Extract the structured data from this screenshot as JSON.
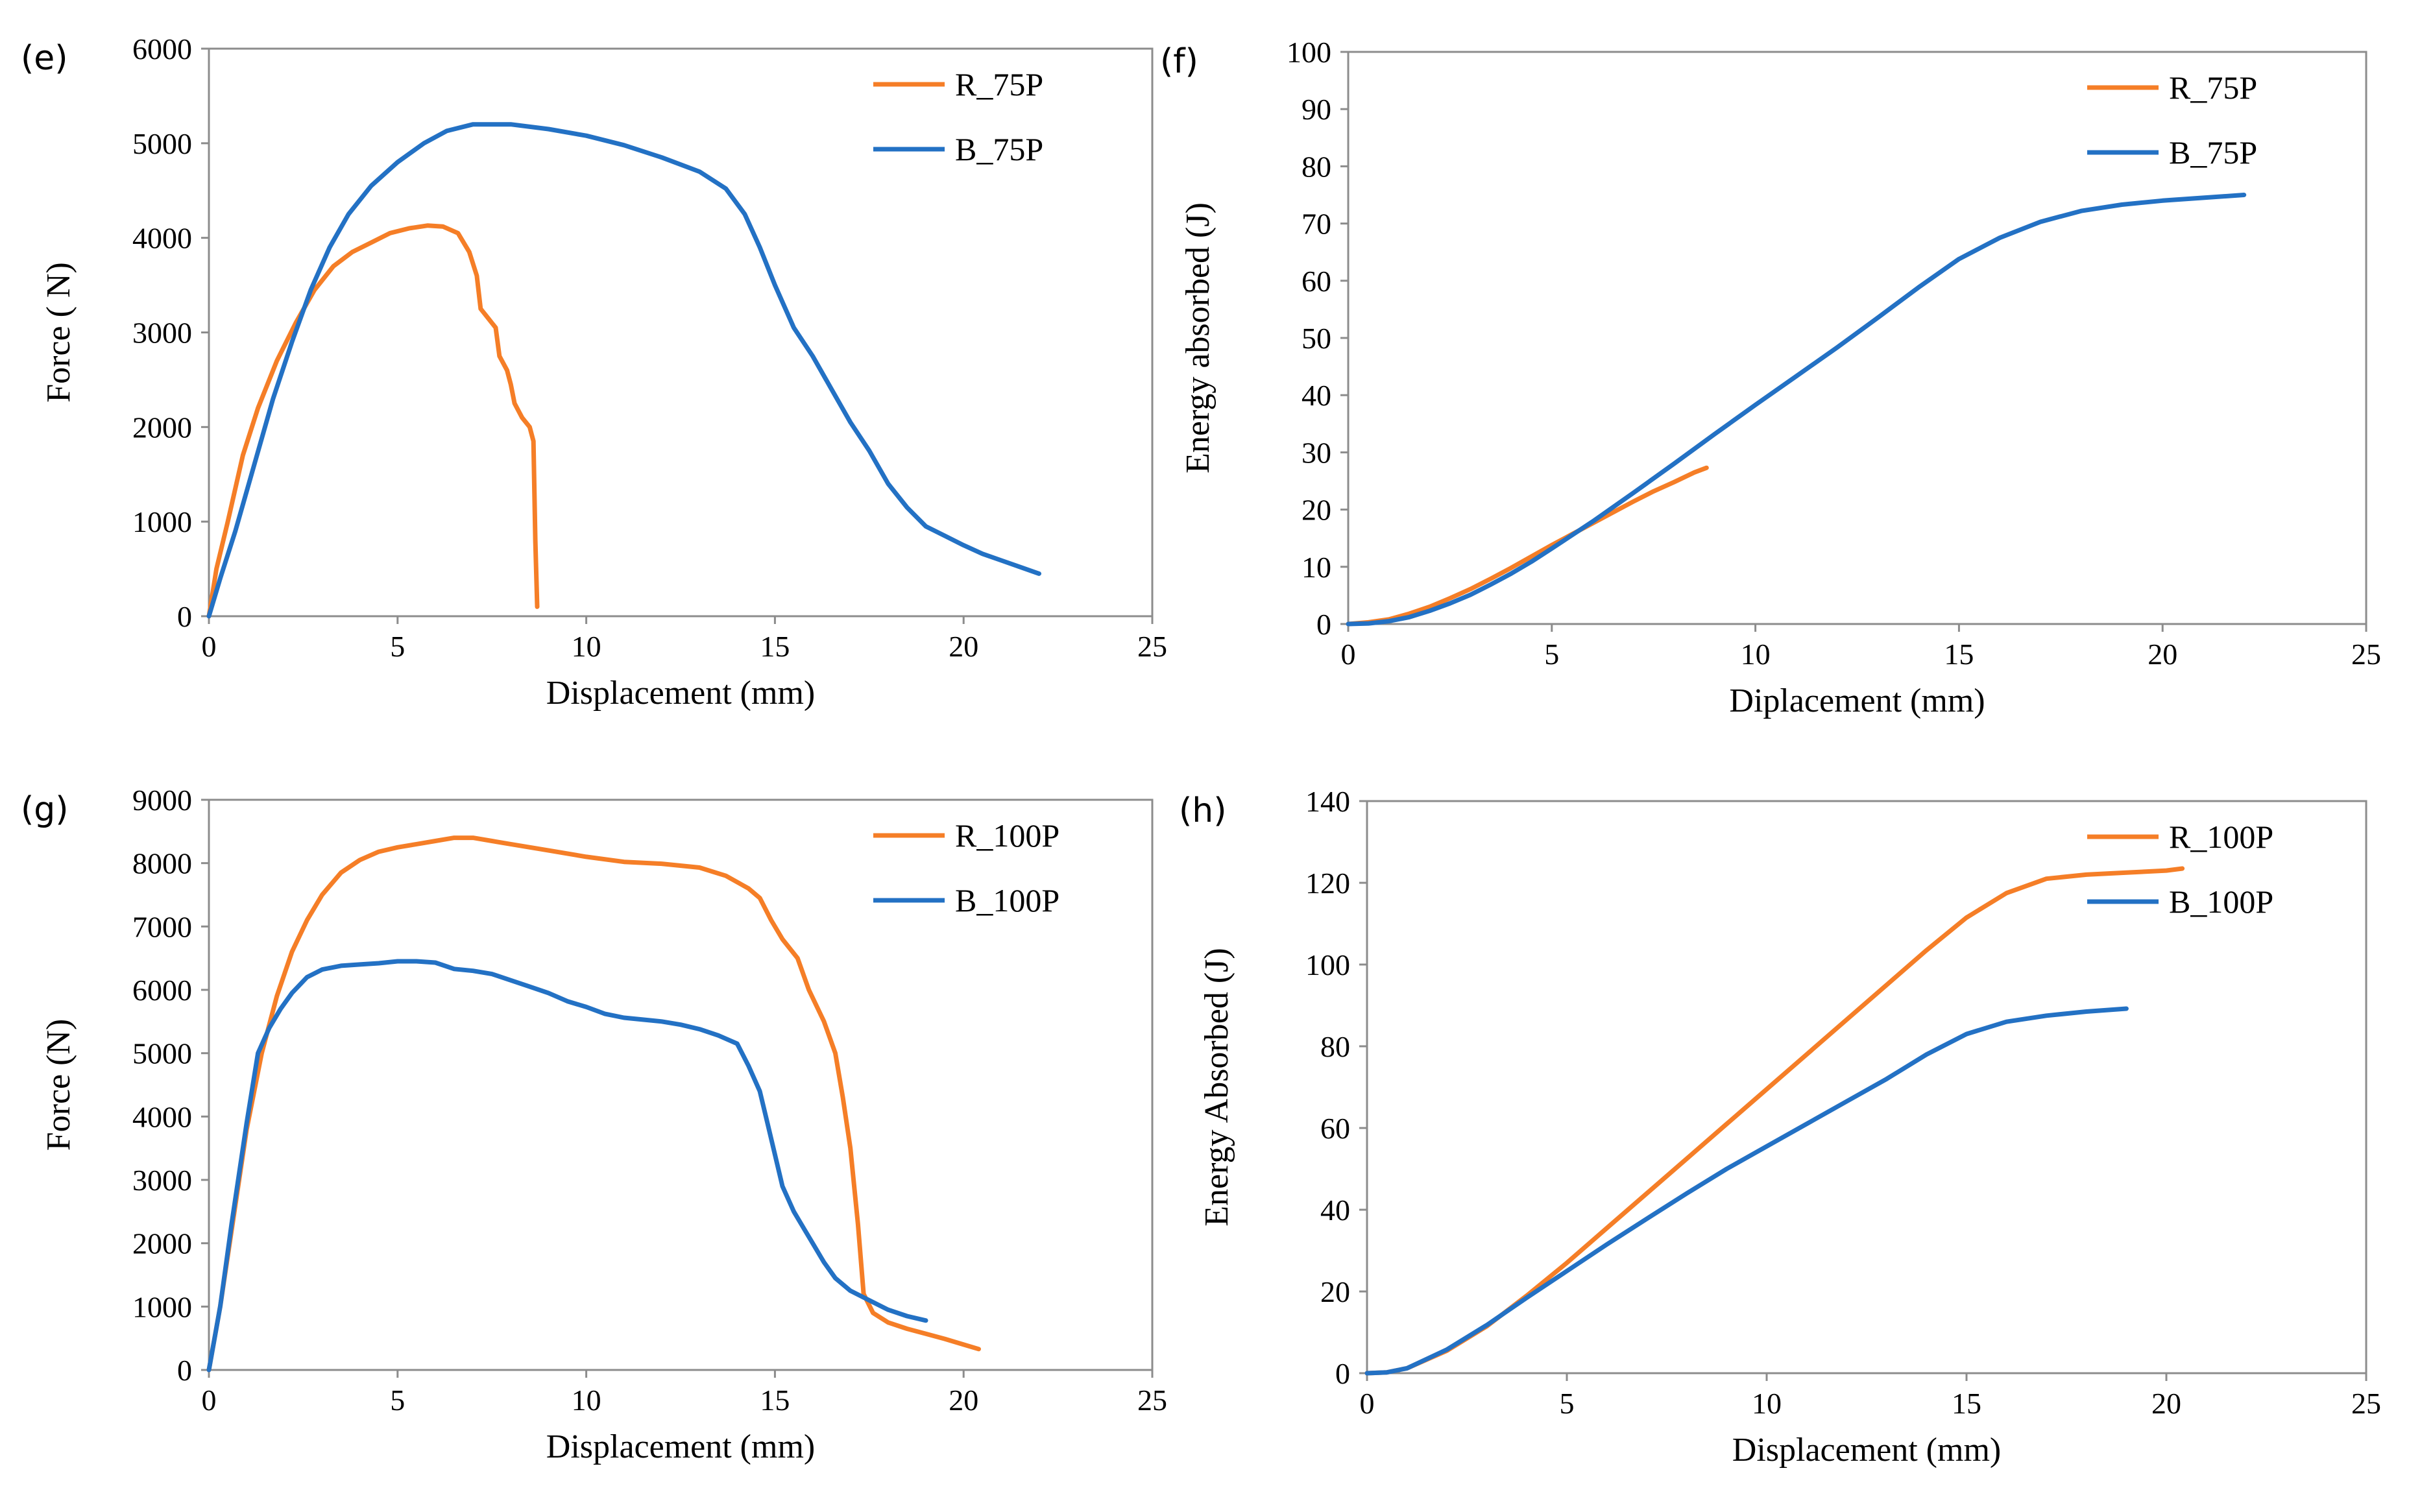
{
  "colors": {
    "orange": "#F57E27",
    "blue": "#2371C4",
    "axis": "#8C8C8C"
  },
  "chart_data": [
    {
      "id": "e",
      "panel_label": "(e)",
      "type": "line",
      "xlabel": "Displacement (mm)",
      "ylabel": "Force ( N)",
      "xlim": [
        0,
        25
      ],
      "ylim": [
        0,
        6000
      ],
      "xticks": [
        "0",
        "5",
        "10",
        "15",
        "20",
        "25"
      ],
      "yticks": [
        "0",
        "1000",
        "2000",
        "3000",
        "4000",
        "5000",
        "6000"
      ],
      "legend_position": "top-right",
      "series": [
        {
          "name": "R_75P",
          "color": "#F57E27",
          "points": [
            [
              0,
              0
            ],
            [
              0.2,
              500
            ],
            [
              0.5,
              1000
            ],
            [
              0.9,
              1700
            ],
            [
              1.3,
              2200
            ],
            [
              1.8,
              2700
            ],
            [
              2.3,
              3100
            ],
            [
              2.8,
              3450
            ],
            [
              3.3,
              3700
            ],
            [
              3.8,
              3850
            ],
            [
              4.3,
              3950
            ],
            [
              4.8,
              4050
            ],
            [
              5.3,
              4100
            ],
            [
              5.8,
              4130
            ],
            [
              6.2,
              4120
            ],
            [
              6.6,
              4050
            ],
            [
              6.9,
              3850
            ],
            [
              7.1,
              3600
            ],
            [
              7.2,
              3250
            ],
            [
              7.4,
              3150
            ],
            [
              7.6,
              3050
            ],
            [
              7.7,
              2750
            ],
            [
              7.9,
              2600
            ],
            [
              8.0,
              2450
            ],
            [
              8.1,
              2250
            ],
            [
              8.3,
              2100
            ],
            [
              8.5,
              2000
            ],
            [
              8.6,
              1850
            ],
            [
              8.65,
              800
            ],
            [
              8.7,
              100
            ]
          ]
        },
        {
          "name": "B_75P",
          "color": "#2371C4",
          "points": [
            [
              0,
              0
            ],
            [
              0.3,
              400
            ],
            [
              0.7,
              900
            ],
            [
              1.2,
              1600
            ],
            [
              1.7,
              2300
            ],
            [
              2.2,
              2900
            ],
            [
              2.7,
              3450
            ],
            [
              3.2,
              3900
            ],
            [
              3.7,
              4250
            ],
            [
              4.3,
              4550
            ],
            [
              5,
              4800
            ],
            [
              5.7,
              5000
            ],
            [
              6.3,
              5130
            ],
            [
              7,
              5200
            ],
            [
              8,
              5200
            ],
            [
              9,
              5150
            ],
            [
              10,
              5080
            ],
            [
              11,
              4980
            ],
            [
              12,
              4850
            ],
            [
              13,
              4700
            ],
            [
              13.7,
              4520
            ],
            [
              14.2,
              4250
            ],
            [
              14.6,
              3900
            ],
            [
              15,
              3500
            ],
            [
              15.5,
              3050
            ],
            [
              16,
              2750
            ],
            [
              16.5,
              2400
            ],
            [
              17,
              2050
            ],
            [
              17.5,
              1750
            ],
            [
              18,
              1400
            ],
            [
              18.5,
              1150
            ],
            [
              19,
              950
            ],
            [
              19.5,
              850
            ],
            [
              20,
              750
            ],
            [
              20.5,
              660
            ],
            [
              21,
              590
            ],
            [
              21.5,
              520
            ],
            [
              22,
              450
            ]
          ]
        }
      ]
    },
    {
      "id": "f",
      "panel_label": "(f)",
      "type": "line",
      "xlabel": "Diplacement (mm)",
      "ylabel": "Energy absorbed (J)",
      "xlim": [
        0,
        25
      ],
      "ylim": [
        0,
        100
      ],
      "xticks": [
        "0",
        "5",
        "10",
        "15",
        "20",
        "25"
      ],
      "yticks": [
        "0",
        "10",
        "20",
        "30",
        "40",
        "50",
        "60",
        "70",
        "80",
        "90",
        "100"
      ],
      "legend_position": "top-right",
      "series": [
        {
          "name": "R_75P",
          "color": "#F57E27",
          "points": [
            [
              0,
              0
            ],
            [
              0.5,
              0.3
            ],
            [
              1,
              0.8
            ],
            [
              1.5,
              1.8
            ],
            [
              2,
              3
            ],
            [
              2.5,
              4.5
            ],
            [
              3,
              6.1
            ],
            [
              3.5,
              7.9
            ],
            [
              4,
              9.8
            ],
            [
              4.5,
              11.8
            ],
            [
              5,
              13.8
            ],
            [
              5.5,
              15.7
            ],
            [
              6,
              17.6
            ],
            [
              6.5,
              19.5
            ],
            [
              7,
              21.4
            ],
            [
              7.5,
              23.2
            ],
            [
              8,
              24.8
            ],
            [
              8.5,
              26.5
            ],
            [
              8.8,
              27.3
            ]
          ]
        },
        {
          "name": "B_75P",
          "color": "#2371C4",
          "points": [
            [
              0,
              0
            ],
            [
              0.5,
              0.1
            ],
            [
              1,
              0.5
            ],
            [
              1.5,
              1.2
            ],
            [
              2,
              2.3
            ],
            [
              2.5,
              3.6
            ],
            [
              3,
              5.1
            ],
            [
              3.5,
              6.9
            ],
            [
              4,
              8.8
            ],
            [
              4.5,
              10.9
            ],
            [
              5,
              13.2
            ],
            [
              6,
              17.9
            ],
            [
              7,
              22.9
            ],
            [
              8,
              28
            ],
            [
              9,
              33.2
            ],
            [
              10,
              38.3
            ],
            [
              11,
              43.3
            ],
            [
              12,
              48.3
            ],
            [
              13,
              53.5
            ],
            [
              14,
              58.8
            ],
            [
              15,
              63.8
            ],
            [
              16,
              67.5
            ],
            [
              17,
              70.3
            ],
            [
              18,
              72.2
            ],
            [
              19,
              73.3
            ],
            [
              20,
              74
            ],
            [
              21,
              74.5
            ],
            [
              22,
              75
            ]
          ]
        }
      ]
    },
    {
      "id": "g",
      "panel_label": "(g)",
      "type": "line",
      "xlabel": "Displacement (mm)",
      "ylabel": "Force (N)",
      "xlim": [
        0,
        25
      ],
      "ylim": [
        0,
        9000
      ],
      "xticks": [
        "0",
        "5",
        "10",
        "15",
        "20",
        "25"
      ],
      "yticks": [
        "0",
        "1000",
        "2000",
        "3000",
        "4000",
        "5000",
        "6000",
        "7000",
        "8000",
        "9000"
      ],
      "legend_position": "top-right",
      "series": [
        {
          "name": "R_100P",
          "color": "#F57E27",
          "points": [
            [
              0,
              0
            ],
            [
              0.3,
              1000
            ],
            [
              0.6,
              2200
            ],
            [
              1,
              3800
            ],
            [
              1.4,
              5000
            ],
            [
              1.8,
              5900
            ],
            [
              2.2,
              6600
            ],
            [
              2.6,
              7100
            ],
            [
              3,
              7500
            ],
            [
              3.5,
              7850
            ],
            [
              4,
              8050
            ],
            [
              4.5,
              8180
            ],
            [
              5,
              8250
            ],
            [
              5.5,
              8300
            ],
            [
              6,
              8350
            ],
            [
              6.5,
              8400
            ],
            [
              7,
              8400
            ],
            [
              7.5,
              8350
            ],
            [
              8,
              8300
            ],
            [
              9,
              8200
            ],
            [
              10,
              8100
            ],
            [
              11,
              8020
            ],
            [
              12,
              7990
            ],
            [
              13,
              7930
            ],
            [
              13.7,
              7800
            ],
            [
              14.3,
              7600
            ],
            [
              14.6,
              7450
            ],
            [
              14.9,
              7100
            ],
            [
              15.2,
              6800
            ],
            [
              15.6,
              6500
            ],
            [
              15.9,
              6000
            ],
            [
              16.3,
              5500
            ],
            [
              16.6,
              5000
            ],
            [
              16.8,
              4300
            ],
            [
              17,
              3500
            ],
            [
              17.2,
              2300
            ],
            [
              17.35,
              1200
            ],
            [
              17.6,
              900
            ],
            [
              18,
              750
            ],
            [
              18.5,
              650
            ],
            [
              19,
              570
            ],
            [
              19.5,
              490
            ],
            [
              20,
              400
            ],
            [
              20.4,
              330
            ]
          ]
        },
        {
          "name": "B_100P",
          "color": "#2371C4",
          "points": [
            [
              0,
              0
            ],
            [
              0.3,
              1000
            ],
            [
              0.6,
              2300
            ],
            [
              1,
              3900
            ],
            [
              1.3,
              5000
            ],
            [
              1.6,
              5400
            ],
            [
              1.9,
              5700
            ],
            [
              2.2,
              5950
            ],
            [
              2.6,
              6200
            ],
            [
              3,
              6320
            ],
            [
              3.5,
              6380
            ],
            [
              4,
              6400
            ],
            [
              4.5,
              6420
            ],
            [
              5,
              6450
            ],
            [
              5.5,
              6450
            ],
            [
              6,
              6430
            ],
            [
              6.5,
              6330
            ],
            [
              7,
              6300
            ],
            [
              7.5,
              6250
            ],
            [
              8,
              6150
            ],
            [
              8.5,
              6050
            ],
            [
              9,
              5950
            ],
            [
              9.5,
              5820
            ],
            [
              10,
              5730
            ],
            [
              10.5,
              5620
            ],
            [
              11,
              5560
            ],
            [
              11.5,
              5530
            ],
            [
              12,
              5500
            ],
            [
              12.5,
              5450
            ],
            [
              13,
              5380
            ],
            [
              13.5,
              5280
            ],
            [
              14,
              5150
            ],
            [
              14.3,
              4800
            ],
            [
              14.6,
              4400
            ],
            [
              14.8,
              3900
            ],
            [
              15,
              3400
            ],
            [
              15.2,
              2900
            ],
            [
              15.5,
              2500
            ],
            [
              15.8,
              2200
            ],
            [
              16,
              2000
            ],
            [
              16.3,
              1700
            ],
            [
              16.6,
              1450
            ],
            [
              17,
              1250
            ],
            [
              17.5,
              1100
            ],
            [
              18,
              950
            ],
            [
              18.5,
              850
            ],
            [
              19,
              780
            ]
          ]
        }
      ]
    },
    {
      "id": "h",
      "panel_label": "(h)",
      "type": "line",
      "xlabel": "Displacement (mm)",
      "ylabel": "Energy Absorbed (J)",
      "xlim": [
        0,
        25
      ],
      "ylim": [
        0,
        140
      ],
      "xticks": [
        "0",
        "5",
        "10",
        "15",
        "20",
        "25"
      ],
      "yticks": [
        "0",
        "20",
        "40",
        "60",
        "80",
        "100",
        "120",
        "140"
      ],
      "legend_position": "top-right",
      "series": [
        {
          "name": "R_100P",
          "color": "#F57E27",
          "points": [
            [
              0,
              0
            ],
            [
              0.5,
              0.2
            ],
            [
              1,
              1.2
            ],
            [
              2,
              5.5
            ],
            [
              3,
              11.5
            ],
            [
              4,
              19
            ],
            [
              5,
              27
            ],
            [
              6,
              35.5
            ],
            [
              7,
              44
            ],
            [
              8,
              52.5
            ],
            [
              9,
              61
            ],
            [
              10,
              69.5
            ],
            [
              11,
              78
            ],
            [
              12,
              86.5
            ],
            [
              13,
              95
            ],
            [
              14,
              103.5
            ],
            [
              15,
              111.5
            ],
            [
              16,
              117.5
            ],
            [
              17,
              121
            ],
            [
              18,
              122
            ],
            [
              19,
              122.5
            ],
            [
              20,
              123
            ],
            [
              20.4,
              123.5
            ]
          ]
        },
        {
          "name": "B_100P",
          "color": "#2371C4",
          "points": [
            [
              0,
              0
            ],
            [
              0.5,
              0.2
            ],
            [
              1,
              1.2
            ],
            [
              2,
              5.8
            ],
            [
              3,
              11.8
            ],
            [
              4,
              18.5
            ],
            [
              5,
              25
            ],
            [
              6,
              31.5
            ],
            [
              7,
              37.8
            ],
            [
              8,
              44
            ],
            [
              9,
              50
            ],
            [
              10,
              55.5
            ],
            [
              11,
              61
            ],
            [
              12,
              66.5
            ],
            [
              13,
              72
            ],
            [
              14,
              78
            ],
            [
              15,
              83
            ],
            [
              16,
              86
            ],
            [
              17,
              87.5
            ],
            [
              18,
              88.5
            ],
            [
              19,
              89.2
            ]
          ]
        }
      ]
    }
  ]
}
